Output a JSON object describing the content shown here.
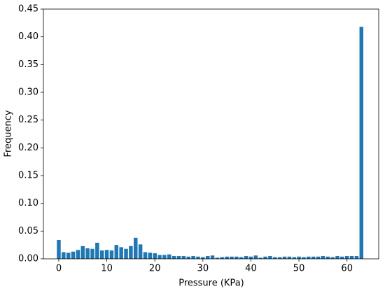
{
  "chart_data": {
    "type": "bar",
    "x": [
      0,
      1,
      2,
      3,
      4,
      5,
      6,
      7,
      8,
      9,
      10,
      11,
      12,
      13,
      14,
      15,
      16,
      17,
      18,
      19,
      20,
      21,
      22,
      23,
      24,
      25,
      26,
      27,
      28,
      29,
      30,
      31,
      32,
      33,
      34,
      35,
      36,
      37,
      38,
      39,
      40,
      41,
      42,
      43,
      44,
      45,
      46,
      47,
      48,
      49,
      50,
      51,
      52,
      53,
      54,
      55,
      56,
      57,
      58,
      59,
      60,
      61,
      62,
      63
    ],
    "values": [
      0.034,
      0.012,
      0.011,
      0.013,
      0.016,
      0.023,
      0.019,
      0.018,
      0.029,
      0.015,
      0.016,
      0.015,
      0.025,
      0.021,
      0.018,
      0.023,
      0.038,
      0.026,
      0.012,
      0.011,
      0.01,
      0.007,
      0.007,
      0.008,
      0.005,
      0.005,
      0.005,
      0.004,
      0.005,
      0.004,
      0.003,
      0.005,
      0.006,
      0.002,
      0.003,
      0.004,
      0.004,
      0.004,
      0.003,
      0.005,
      0.004,
      0.006,
      0.002,
      0.004,
      0.005,
      0.003,
      0.003,
      0.004,
      0.004,
      0.003,
      0.004,
      0.003,
      0.004,
      0.004,
      0.004,
      0.005,
      0.004,
      0.003,
      0.005,
      0.004,
      0.005,
      0.005,
      0.005,
      0.418
    ],
    "color": "#1f77b4",
    "xlabel": "Pressure (KPa)",
    "ylabel": "Frequency",
    "xlim": [
      -3.2,
      66.6
    ],
    "xticks": [
      0,
      10,
      20,
      30,
      40,
      50,
      60
    ],
    "ylim": [
      0,
      0.45
    ],
    "yticks": [
      {
        "value": 0,
        "label": "0.00"
      },
      {
        "value": 0.05,
        "label": "0.05"
      },
      {
        "value": 0.1,
        "label": "0.10"
      },
      {
        "value": 0.15,
        "label": "0.15"
      },
      {
        "value": 0.2,
        "label": "0.20"
      },
      {
        "value": 0.25,
        "label": "0.25"
      },
      {
        "value": 0.3,
        "label": "0.30"
      },
      {
        "value": 0.35,
        "label": "0.35"
      },
      {
        "value": 0.4,
        "label": "0.40"
      },
      {
        "value": 0.45,
        "label": "0.45"
      }
    ]
  }
}
